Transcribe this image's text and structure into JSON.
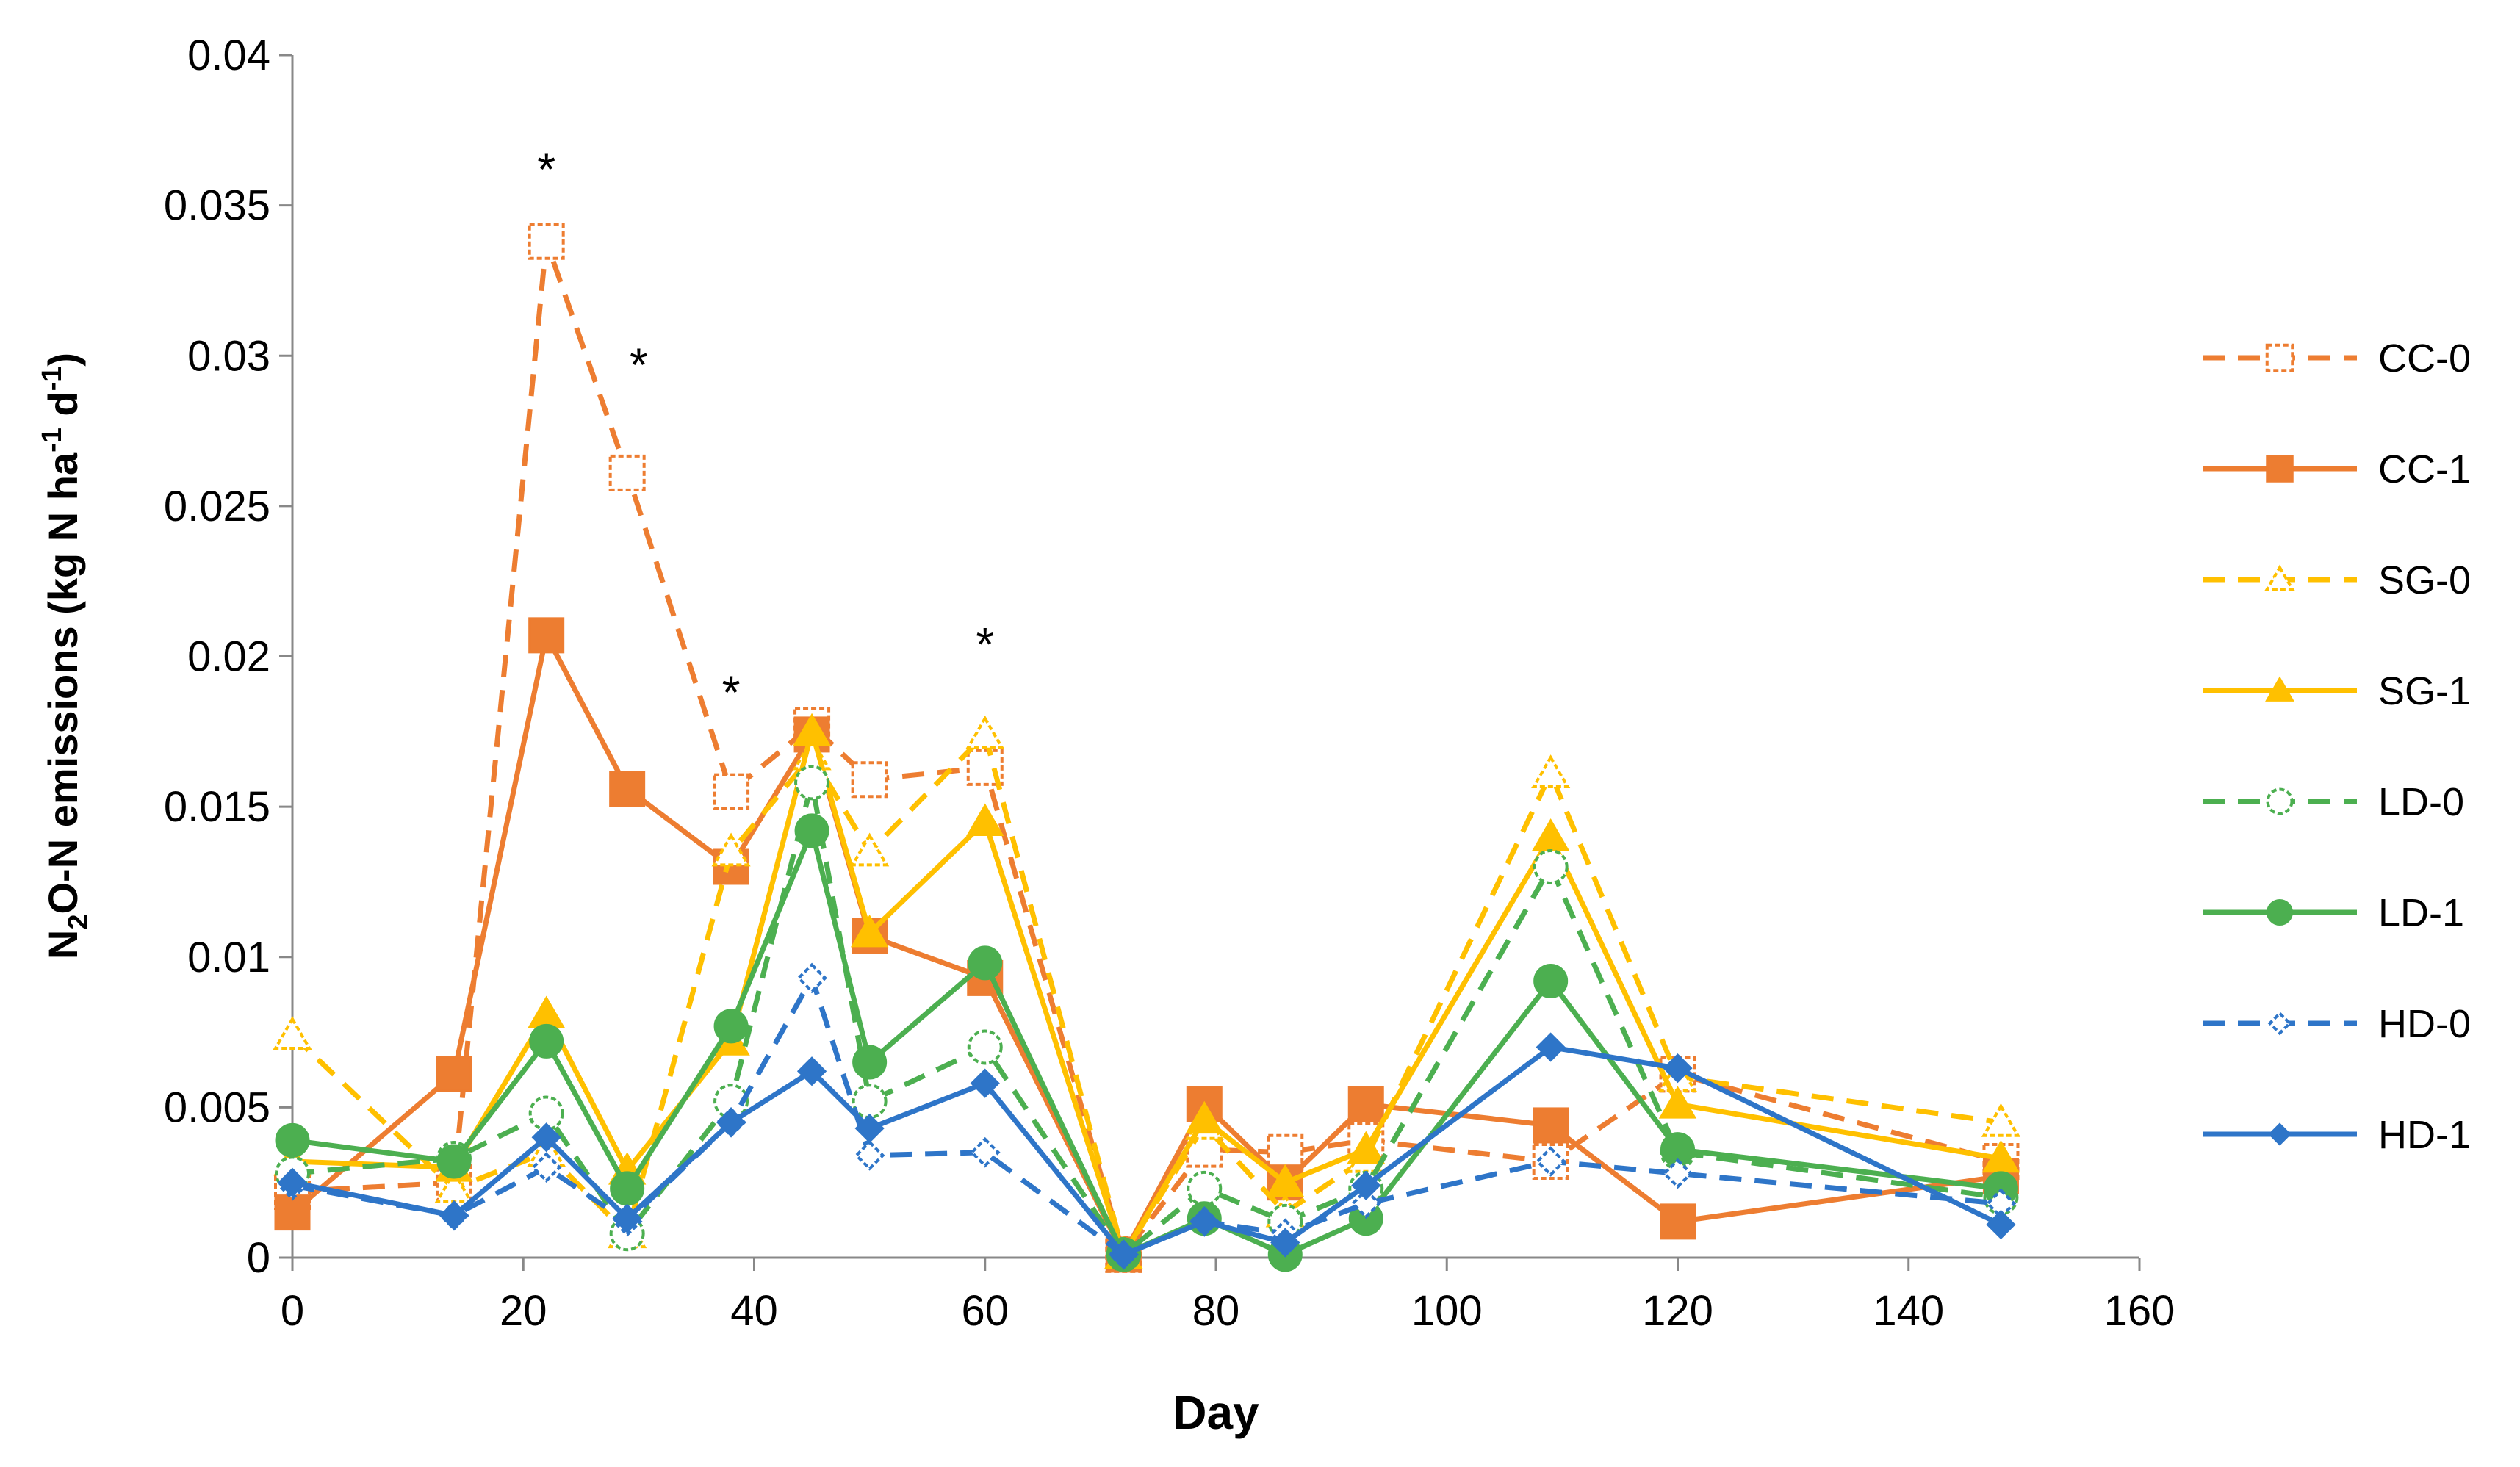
{
  "chart_data": {
    "type": "line",
    "title": "",
    "xlabel": "Day",
    "ylabel": {
      "base": "N",
      "sub": "2",
      "mid": "O-N emissions (kg N ha",
      "sup1": "-1",
      "mid2": " d",
      "sup2": "-1",
      "end": ")"
    },
    "xlim": [
      0,
      160
    ],
    "ylim": [
      0,
      0.04
    ],
    "xticks": [
      "0",
      "20",
      "40",
      "60",
      "80",
      "100",
      "120",
      "140",
      "160"
    ],
    "yticks": [
      "0",
      "0.005",
      "0.01",
      "0.015",
      "0.02",
      "0.025",
      "0.03",
      "0.035",
      "0.04"
    ],
    "x": [
      0,
      14,
      22,
      29,
      38,
      45,
      50,
      60,
      72,
      79,
      86,
      93,
      109,
      120,
      148
    ],
    "series": [
      {
        "name": "CC-0",
        "color": "#ED7D31",
        "dash": true,
        "marker": "square",
        "filled": false,
        "values": [
          0.0022,
          0.0025,
          0.0338,
          0.0261,
          0.0155,
          0.0177,
          0.0159,
          0.0163,
          0.0001,
          0.0036,
          0.0035,
          0.0039,
          0.0032,
          0.0061,
          0.0032
        ]
      },
      {
        "name": "CC-1",
        "color": "#ED7D31",
        "dash": false,
        "marker": "square",
        "filled": true,
        "values": [
          0.0015,
          0.0061,
          0.0207,
          0.0156,
          0.013,
          0.0174,
          0.0107,
          0.0093,
          0.0001,
          0.0051,
          0.0025,
          0.0051,
          0.0044,
          0.0012,
          0.0027
        ]
      },
      {
        "name": "SG-0",
        "color": "#FFC000",
        "dash": true,
        "marker": "triangle",
        "filled": false,
        "values": [
          0.0074,
          0.0023,
          0.0035,
          0.0008,
          0.0135,
          0.0167,
          0.0135,
          0.0174,
          0.0001,
          0.0044,
          0.0015,
          0.0033,
          0.0161,
          0.006,
          0.0045
        ]
      },
      {
        "name": "SG-1",
        "color": "#FFC000",
        "dash": false,
        "marker": "triangle",
        "filled": true,
        "values": [
          0.0032,
          0.003,
          0.0081,
          0.0029,
          0.0072,
          0.0175,
          0.0108,
          0.0145,
          0.0001,
          0.0046,
          0.0025,
          0.0036,
          0.014,
          0.0051,
          0.0033
        ]
      },
      {
        "name": "LD-0",
        "color": "#4CAF50",
        "dash": true,
        "marker": "circle",
        "filled": false,
        "values": [
          0.0028,
          0.0033,
          0.0048,
          0.0008,
          0.0052,
          0.0158,
          0.0052,
          0.007,
          0.0001,
          0.0023,
          0.0012,
          0.0023,
          0.013,
          0.0035,
          0.002
        ]
      },
      {
        "name": "LD-1",
        "color": "#4CAF50",
        "dash": false,
        "marker": "circle",
        "filled": true,
        "values": [
          0.0039,
          0.0032,
          0.0072,
          0.0023,
          0.0077,
          0.0142,
          0.0065,
          0.0098,
          0.0001,
          0.0013,
          0.0001,
          0.0013,
          0.0092,
          0.0036,
          0.0023
        ]
      },
      {
        "name": "HD-0",
        "color": "#2E75C8",
        "dash": true,
        "marker": "diamond",
        "filled": false,
        "values": [
          0.0024,
          0.0014,
          0.003,
          0.0012,
          0.0045,
          0.0093,
          0.0034,
          0.0035,
          0.0001,
          0.0012,
          0.0008,
          0.0018,
          0.0032,
          0.0028,
          0.0018
        ]
      },
      {
        "name": "HD-1",
        "color": "#2E75C8",
        "dash": false,
        "marker": "diamond",
        "filled": true,
        "values": [
          0.0025,
          0.0014,
          0.004,
          0.0013,
          0.0045,
          0.0062,
          0.0043,
          0.0058,
          0.0001,
          0.0012,
          0.0005,
          0.0024,
          0.007,
          0.0063,
          0.0011
        ]
      }
    ],
    "annotations": [
      {
        "text": "*",
        "x": 22,
        "y": 0.0362
      },
      {
        "text": "*",
        "x": 30,
        "y": 0.0297
      },
      {
        "text": "*",
        "x": 38,
        "y": 0.0188
      },
      {
        "text": "*",
        "x": 60,
        "y": 0.0204
      }
    ],
    "legend": "right",
    "grid": false
  }
}
